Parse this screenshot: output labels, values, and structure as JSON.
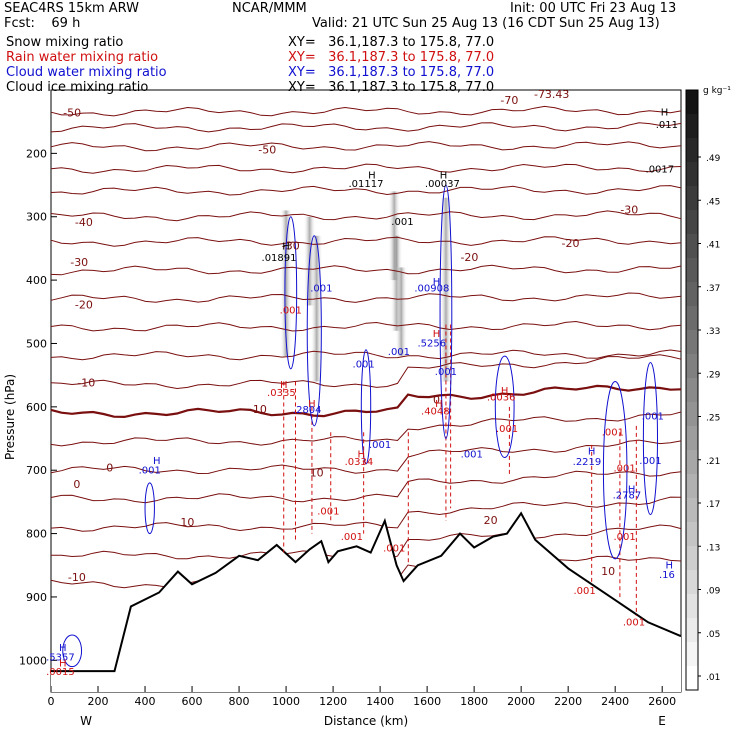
{
  "header": {
    "model": "SEAC4RS 15km ARW",
    "center": "NCAR/MMM",
    "init": "Init: 00 UTC Fri 23 Aug 13",
    "fcst": "Fcst:    69 h",
    "valid": "Valid: 21 UTC Sun 25 Aug 13 (16 CDT Sun 25 Aug 13)"
  },
  "legend": [
    {
      "label": "Snow mixing ratio",
      "xy": "XY=   36.1,187.3 to 175.8, 77.0",
      "color": "#000000"
    },
    {
      "label": "Rain water mixing ratio",
      "xy": "XY=   36.1,187.3 to 175.8, 77.0",
      "color": "#d01010"
    },
    {
      "label": "Cloud water mixing ratio",
      "xy": "XY=   36.1,187.3 to 175.8, 77.0",
      "color": "#1010d0"
    },
    {
      "label": "Cloud ice mixing ratio",
      "xy": "XY=   36.1,187.3 to 175.8, 77.0",
      "color": "#000000"
    }
  ],
  "colorbar": {
    "unit": "g kg⁻¹",
    "labels": [
      ".49",
      ".45",
      ".41",
      ".37",
      ".33",
      ".29",
      ".25",
      ".21",
      ".17",
      ".13",
      ".09",
      ".05",
      ".01"
    ]
  },
  "chart_data": {
    "type": "cross-section contour",
    "xlabel": "Distance (km)",
    "ylabel": "Pressure (hPa)",
    "xlim": [
      0,
      2680
    ],
    "ylim": [
      1050,
      100
    ],
    "x_ticks": [
      0,
      200,
      400,
      600,
      800,
      1000,
      1200,
      1400,
      1600,
      1800,
      2000,
      2200,
      2400,
      2600
    ],
    "y_ticks": [
      200,
      300,
      400,
      500,
      600,
      700,
      800,
      900,
      1000
    ],
    "x_end_labels": {
      "left": "W",
      "right": "E"
    },
    "terrain_hPa": [
      [
        0,
        1017
      ],
      [
        270,
        1017
      ],
      [
        340,
        915
      ],
      [
        460,
        893
      ],
      [
        540,
        860
      ],
      [
        600,
        880
      ],
      [
        700,
        862
      ],
      [
        800,
        835
      ],
      [
        880,
        842
      ],
      [
        960,
        818
      ],
      [
        1040,
        845
      ],
      [
        1100,
        825
      ],
      [
        1150,
        812
      ],
      [
        1180,
        845
      ],
      [
        1220,
        828
      ],
      [
        1300,
        820
      ],
      [
        1360,
        830
      ],
      [
        1420,
        780
      ],
      [
        1470,
        850
      ],
      [
        1500,
        875
      ],
      [
        1560,
        850
      ],
      [
        1660,
        835
      ],
      [
        1740,
        800
      ],
      [
        1800,
        822
      ],
      [
        1880,
        805
      ],
      [
        1940,
        800
      ],
      [
        2000,
        768
      ],
      [
        2060,
        810
      ],
      [
        2200,
        855
      ],
      [
        2400,
        905
      ],
      [
        2540,
        940
      ],
      [
        2680,
        962
      ]
    ],
    "temperature_labels_C": [
      {
        "v": "-73.43",
        "x": 2130,
        "p": 113
      },
      {
        "v": "-70",
        "x": 1950,
        "p": 122
      },
      {
        "v": "-50",
        "x": 90,
        "p": 142
      },
      {
        "v": "-50",
        "x": 920,
        "p": 200
      },
      {
        "v": "-40",
        "x": 140,
        "p": 315
      },
      {
        "v": "-30",
        "x": 1020,
        "p": 352
      },
      {
        "v": "-30",
        "x": 2460,
        "p": 295
      },
      {
        "v": "-20",
        "x": 1780,
        "p": 370
      },
      {
        "v": "-20",
        "x": 2210,
        "p": 348
      },
      {
        "v": "-30",
        "x": 120,
        "p": 378
      },
      {
        "v": "-20",
        "x": 140,
        "p": 445
      },
      {
        "v": "-10",
        "x": 150,
        "p": 568
      },
      {
        "v": "-10",
        "x": 880,
        "p": 610
      },
      {
        "v": "0",
        "x": 250,
        "p": 702
      },
      {
        "v": "0",
        "x": 110,
        "p": 728
      },
      {
        "v": "0",
        "x": 1640,
        "p": 595
      },
      {
        "v": "10",
        "x": 580,
        "p": 788
      },
      {
        "v": "10",
        "x": 1130,
        "p": 710
      },
      {
        "v": "20",
        "x": 1870,
        "p": 785
      },
      {
        "v": "-10",
        "x": 110,
        "p": 875
      },
      {
        "v": "10",
        "x": 2370,
        "p": 865
      }
    ],
    "annotations": [
      {
        "v": "H",
        "x": 2610,
        "p": 140,
        "color": "#000000"
      },
      {
        "v": ".011",
        "x": 2620,
        "p": 160,
        "color": "#000000"
      },
      {
        "v": ".0017",
        "x": 2590,
        "p": 230,
        "color": "#000000"
      },
      {
        "v": "H",
        "x": 1365,
        "p": 240,
        "color": "#000000"
      },
      {
        "v": ".01117",
        "x": 1340,
        "p": 253,
        "color": "#000000"
      },
      {
        "v": "H",
        "x": 1670,
        "p": 240,
        "color": "#000000"
      },
      {
        "v": ".00037",
        "x": 1665,
        "p": 253,
        "color": "#000000"
      },
      {
        "v": ".001",
        "x": 1495,
        "p": 313,
        "color": "#000000"
      },
      {
        "v": "H",
        "x": 1000,
        "p": 352,
        "color": "#000000"
      },
      {
        "v": ".01891",
        "x": 970,
        "p": 370,
        "color": "#000000"
      },
      {
        "v": "H",
        "x": 1640,
        "p": 408,
        "color": "#1010d0"
      },
      {
        "v": ".00908",
        "x": 1620,
        "p": 418,
        "color": "#1010d0"
      },
      {
        "v": ".001",
        "x": 1150,
        "p": 418,
        "color": "#1010d0"
      },
      {
        "v": ".001",
        "x": 1020,
        "p": 453,
        "color": "#d01010"
      },
      {
        "v": "H",
        "x": 1640,
        "p": 490,
        "color": "#d01010"
      },
      {
        "v": ".5256",
        "x": 1620,
        "p": 505,
        "color": "#1010d0"
      },
      {
        "v": ".001",
        "x": 1480,
        "p": 518,
        "color": "#1010d0"
      },
      {
        "v": ".001",
        "x": 1330,
        "p": 538,
        "color": "#1010d0"
      },
      {
        "v": ".001",
        "x": 1680,
        "p": 550,
        "color": "#1010d0"
      },
      {
        "v": "H",
        "x": 1930,
        "p": 580,
        "color": "#d01010"
      },
      {
        "v": ".0036",
        "x": 1915,
        "p": 590,
        "color": "#d01010"
      },
      {
        "v": "H",
        "x": 990,
        "p": 570,
        "color": "#d01010"
      },
      {
        "v": ".0335",
        "x": 980,
        "p": 583,
        "color": "#d01010"
      },
      {
        "v": "H",
        "x": 1110,
        "p": 600,
        "color": "#d01010"
      },
      {
        "v": ".2804",
        "x": 1090,
        "p": 610,
        "color": "#1010d0"
      },
      {
        "v": "H",
        "x": 1650,
        "p": 600,
        "color": "#d01010"
      },
      {
        "v": ".4048",
        "x": 1635,
        "p": 612,
        "color": "#d01010"
      },
      {
        "v": ".001",
        "x": 1940,
        "p": 640,
        "color": "#d01010"
      },
      {
        "v": ".001",
        "x": 2560,
        "p": 620,
        "color": "#1010d0"
      },
      {
        "v": ".001",
        "x": 2390,
        "p": 645,
        "color": "#d01010"
      },
      {
        "v": ".001",
        "x": 1400,
        "p": 665,
        "color": "#1010d0"
      },
      {
        "v": "H",
        "x": 1320,
        "p": 680,
        "color": "#d01010"
      },
      {
        "v": ".0334",
        "x": 1310,
        "p": 692,
        "color": "#d01010"
      },
      {
        "v": ".001",
        "x": 1790,
        "p": 680,
        "color": "#1010d0"
      },
      {
        "v": "H",
        "x": 2300,
        "p": 675,
        "color": "#1010d0"
      },
      {
        "v": ".2219",
        "x": 2280,
        "p": 692,
        "color": "#1010d0"
      },
      {
        "v": ".001",
        "x": 2550,
        "p": 690,
        "color": "#1010d0"
      },
      {
        "v": ".001",
        "x": 2440,
        "p": 702,
        "color": "#d01010"
      },
      {
        "v": "H",
        "x": 450,
        "p": 690,
        "color": "#1010d0"
      },
      {
        "v": ".001",
        "x": 420,
        "p": 705,
        "color": "#1010d0"
      },
      {
        "v": "H",
        "x": 2470,
        "p": 735,
        "color": "#1010d0"
      },
      {
        "v": ".2787",
        "x": 2450,
        "p": 745,
        "color": "#1010d0"
      },
      {
        "v": ".001",
        "x": 2440,
        "p": 810,
        "color": "#d01010"
      },
      {
        "v": ".001",
        "x": 1180,
        "p": 770,
        "color": "#d01010"
      },
      {
        "v": ".001",
        "x": 1280,
        "p": 810,
        "color": "#d01010"
      },
      {
        "v": ".001",
        "x": 1460,
        "p": 828,
        "color": "#d01010"
      },
      {
        "v": ".001",
        "x": 2270,
        "p": 895,
        "color": "#d01010"
      },
      {
        "v": ".001",
        "x": 2480,
        "p": 945,
        "color": "#d01010"
      },
      {
        "v": "H",
        "x": 2630,
        "p": 855,
        "color": "#1010d0"
      },
      {
        "v": ".16",
        "x": 2620,
        "p": 870,
        "color": "#1010d0"
      },
      {
        "v": "H",
        "x": 50,
        "p": 985,
        "color": "#1010d0"
      },
      {
        "v": ".5357",
        "x": 40,
        "p": 1000,
        "color": "#1010d0"
      },
      {
        "v": "H",
        "x": 50,
        "p": 1010,
        "color": "#d01010"
      },
      {
        "v": ".0015",
        "x": 40,
        "p": 1023,
        "color": "#d01010"
      }
    ]
  }
}
